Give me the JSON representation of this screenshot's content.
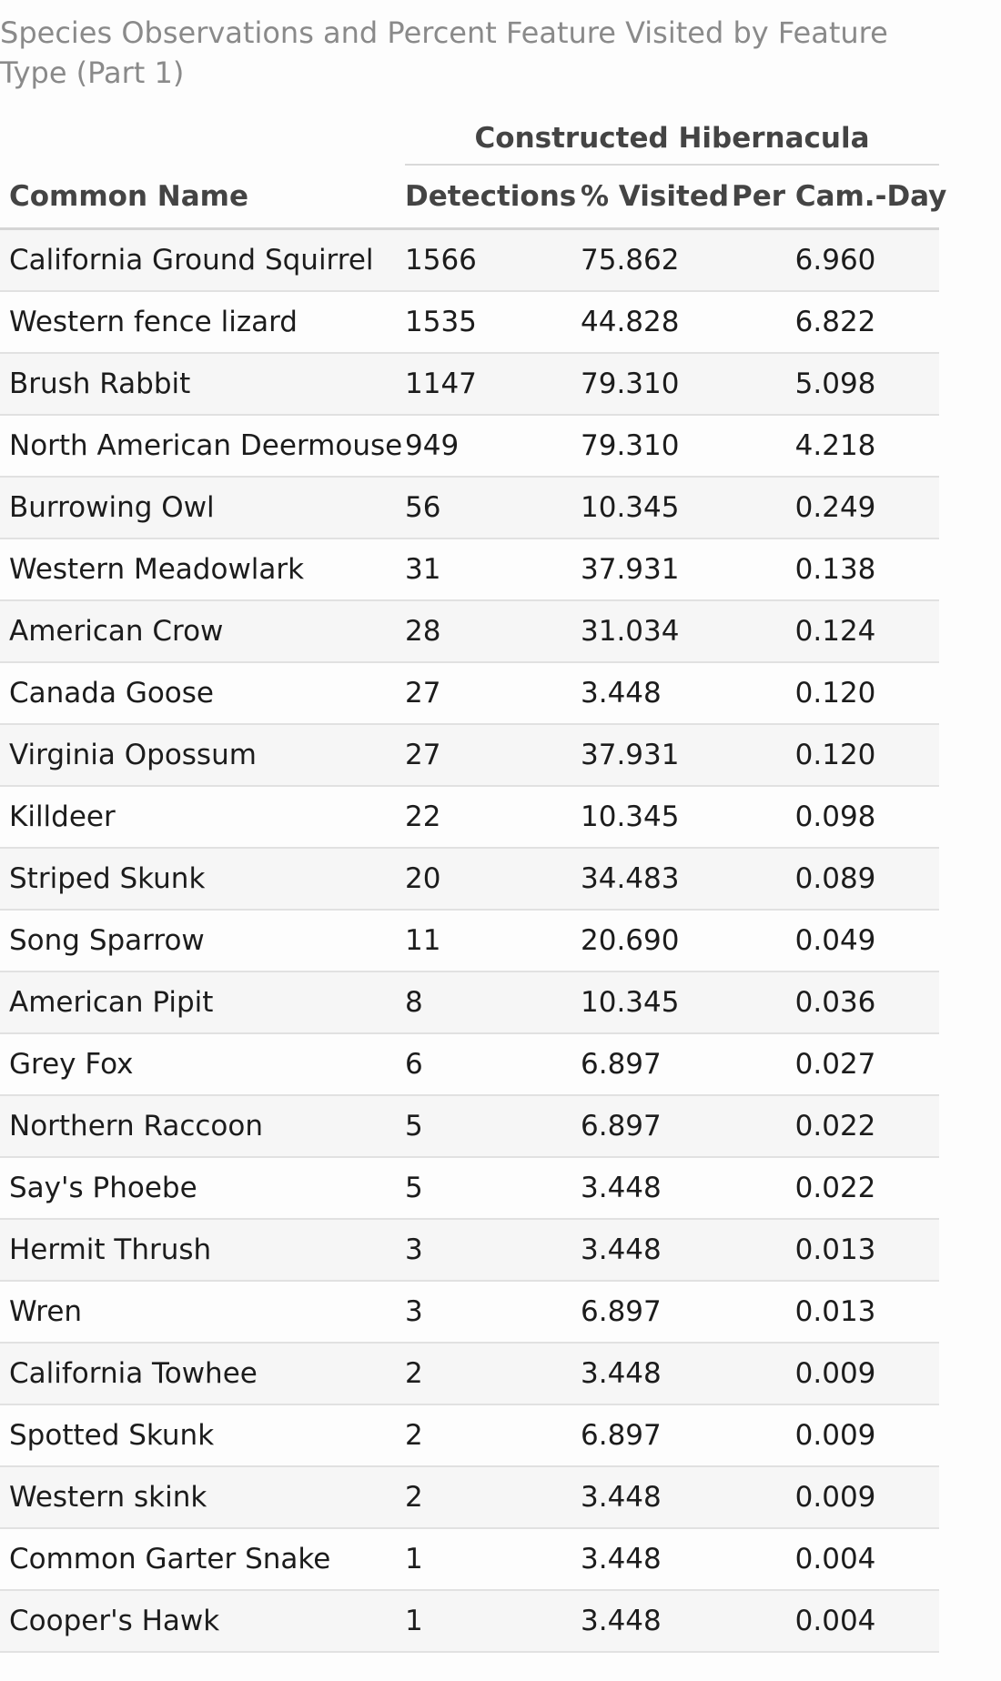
{
  "caption": "Species Observations and Percent Feature Visited by Feature Type (Part 1)",
  "spanner": "Constructed Hibernacula",
  "columns": {
    "name": "Common Name",
    "detections": "Detections",
    "visited": "% Visited",
    "per_cam_day": "Per Cam.-Day"
  },
  "rows": [
    {
      "name": "California Ground Squirrel",
      "detections": "1566",
      "visited": "75.862",
      "per_cam_day": "6.960"
    },
    {
      "name": "Western fence lizard",
      "detections": "1535",
      "visited": "44.828",
      "per_cam_day": "6.822"
    },
    {
      "name": "Brush Rabbit",
      "detections": "1147",
      "visited": "79.310",
      "per_cam_day": "5.098"
    },
    {
      "name": "North American Deermouse",
      "detections": "949",
      "visited": "79.310",
      "per_cam_day": "4.218"
    },
    {
      "name": "Burrowing Owl",
      "detections": "56",
      "visited": "10.345",
      "per_cam_day": "0.249"
    },
    {
      "name": "Western Meadowlark",
      "detections": "31",
      "visited": "37.931",
      "per_cam_day": "0.138"
    },
    {
      "name": "American Crow",
      "detections": "28",
      "visited": "31.034",
      "per_cam_day": "0.124"
    },
    {
      "name": "Canada Goose",
      "detections": "27",
      "visited": "3.448",
      "per_cam_day": "0.120"
    },
    {
      "name": "Virginia Opossum",
      "detections": "27",
      "visited": "37.931",
      "per_cam_day": "0.120"
    },
    {
      "name": "Killdeer",
      "detections": "22",
      "visited": "10.345",
      "per_cam_day": "0.098"
    },
    {
      "name": "Striped Skunk",
      "detections": "20",
      "visited": "34.483",
      "per_cam_day": "0.089"
    },
    {
      "name": "Song Sparrow",
      "detections": "11",
      "visited": "20.690",
      "per_cam_day": "0.049"
    },
    {
      "name": "American Pipit",
      "detections": "8",
      "visited": "10.345",
      "per_cam_day": "0.036"
    },
    {
      "name": "Grey Fox",
      "detections": "6",
      "visited": "6.897",
      "per_cam_day": "0.027"
    },
    {
      "name": "Northern Raccoon",
      "detections": "5",
      "visited": "6.897",
      "per_cam_day": "0.022"
    },
    {
      "name": "Say's Phoebe",
      "detections": "5",
      "visited": "3.448",
      "per_cam_day": "0.022"
    },
    {
      "name": "Hermit Thrush",
      "detections": "3",
      "visited": "3.448",
      "per_cam_day": "0.013"
    },
    {
      "name": "Wren",
      "detections": "3",
      "visited": "6.897",
      "per_cam_day": "0.013"
    },
    {
      "name": "California Towhee",
      "detections": "2",
      "visited": "3.448",
      "per_cam_day": "0.009"
    },
    {
      "name": "Spotted Skunk",
      "detections": "2",
      "visited": "6.897",
      "per_cam_day": "0.009"
    },
    {
      "name": "Western skink",
      "detections": "2",
      "visited": "3.448",
      "per_cam_day": "0.009"
    },
    {
      "name": "Common Garter Snake",
      "detections": "1",
      "visited": "3.448",
      "per_cam_day": "0.004"
    },
    {
      "name": "Cooper's Hawk",
      "detections": "1",
      "visited": "3.448",
      "per_cam_day": "0.004"
    }
  ]
}
